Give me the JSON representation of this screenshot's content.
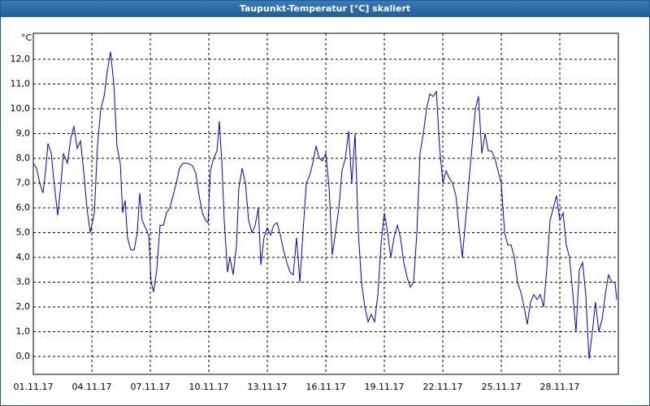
{
  "chart_data": {
    "type": "line",
    "title": "Taupunkt-Temperatur [°C] skaliert",
    "y_unit": "°C",
    "x": [
      0,
      0.17,
      0.33,
      0.5,
      0.63,
      0.75,
      0.92,
      1.04,
      1.25,
      1.42,
      1.54,
      1.75,
      1.92,
      2.08,
      2.25,
      2.42,
      2.58,
      2.75,
      2.92,
      3.13,
      3.29,
      3.46,
      3.63,
      3.79,
      3.96,
      4.13,
      4.29,
      4.46,
      4.58,
      4.71,
      4.83,
      5,
      5.17,
      5.33,
      5.46,
      5.58,
      5.75,
      5.92,
      6.04,
      6.17,
      6.33,
      6.5,
      6.67,
      6.83,
      7,
      7.17,
      7.33,
      7.5,
      7.67,
      7.92,
      8.17,
      8.33,
      8.5,
      8.67,
      8.83,
      8.96,
      9.08,
      9.25,
      9.42,
      9.54,
      9.67,
      9.79,
      9.96,
      10.08,
      10.25,
      10.42,
      10.54,
      10.71,
      10.88,
      11.04,
      11.21,
      11.38,
      11.54,
      11.67,
      11.83,
      12,
      12.17,
      12.33,
      12.5,
      12.67,
      12.83,
      13,
      13.17,
      13.33,
      13.5,
      13.67,
      13.83,
      14,
      14.17,
      14.33,
      14.5,
      14.67,
      14.83,
      15,
      15.17,
      15.33,
      15.5,
      15.67,
      15.83,
      16,
      16.17,
      16.33,
      16.5,
      16.67,
      16.83,
      17,
      17.17,
      17.33,
      17.5,
      17.67,
      17.83,
      18,
      18.17,
      18.33,
      18.5,
      18.67,
      18.83,
      19,
      19.17,
      19.33,
      19.5,
      19.67,
      19.83,
      20,
      20.17,
      20.33,
      20.5,
      20.67,
      20.83,
      21,
      21.17,
      21.33,
      21.5,
      21.67,
      21.83,
      22,
      22.17,
      22.33,
      22.5,
      22.67,
      22.83,
      23,
      23.17,
      23.33,
      23.5,
      23.67,
      23.83,
      24,
      24.17,
      24.33,
      24.5,
      24.67,
      24.83,
      25,
      25.17,
      25.33,
      25.5,
      25.67,
      25.83,
      26,
      26.17,
      26.33,
      26.5,
      26.67,
      26.83,
      27,
      27.17,
      27.33,
      27.5,
      27.67,
      27.83,
      28,
      28.17,
      28.33,
      28.5,
      28.67,
      28.83,
      29,
      29.17,
      29.33,
      29.5,
      29.67,
      29.83,
      29.92
    ],
    "series": [
      {
        "color": "#0000c8",
        "values": [
          7.8,
          7.6,
          7.0,
          6.6,
          7.5,
          8.6,
          8.2,
          7.2,
          5.7,
          7.0,
          8.2,
          7.8,
          8.8,
          9.3,
          8.4,
          8.7,
          7.5,
          6.0,
          5.0,
          5.8,
          8.5,
          10.0,
          10.5,
          11.5,
          12.3,
          11.0,
          8.5,
          7.8,
          5.8,
          6.3,
          4.8,
          4.3,
          4.3,
          5.0,
          6.6,
          5.5,
          5.2,
          4.9,
          3.0,
          2.6,
          3.5,
          5.3,
          5.3,
          5.8,
          6.0,
          6.5,
          7.0,
          7.6,
          7.8,
          7.8,
          7.7,
          7.4,
          6.5,
          5.8,
          5.5,
          5.4,
          7.5,
          8.0,
          8.3,
          9.5,
          7.8,
          5.5,
          3.4,
          4.0,
          3.3,
          4.5,
          6.8,
          7.6,
          7.0,
          5.5,
          5.0,
          5.3,
          6.0,
          3.7,
          4.8,
          5.2,
          4.9,
          5.3,
          5.4,
          4.9,
          4.3,
          3.8,
          3.4,
          3.3,
          4.8,
          3.0,
          5.0,
          7.0,
          7.3,
          7.8,
          8.5,
          8.0,
          7.9,
          8.2,
          6.8,
          4.1,
          5.0,
          6.0,
          7.5,
          8.0,
          9.1,
          7.0,
          9.0,
          5.0,
          3.0,
          2.0,
          1.4,
          1.7,
          1.4,
          2.5,
          4.5,
          5.8,
          5.0,
          4.0,
          4.8,
          5.3,
          4.8,
          3.8,
          3.2,
          2.8,
          3.0,
          5.0,
          8.2,
          9.0,
          10.0,
          10.6,
          10.5,
          10.7,
          8.5,
          7.0,
          7.5,
          7.2,
          7.0,
          6.5,
          5.2,
          4.0,
          5.5,
          7.0,
          8.5,
          10.0,
          10.5,
          8.2,
          9.0,
          8.3,
          8.3,
          8.0,
          7.5,
          7.0,
          5.0,
          4.5,
          4.5,
          4.0,
          3.0,
          2.6,
          2.0,
          1.3,
          2.2,
          2.5,
          2.3,
          2.5,
          2.0,
          3.5,
          5.5,
          6.0,
          6.5,
          5.5,
          5.8,
          4.5,
          4.0,
          2.5,
          1.0,
          3.5,
          3.8,
          2.5,
          -0.1,
          1.0,
          2.2,
          1.0,
          1.5,
          2.5,
          3.3,
          3.0,
          3.0,
          2.3
        ]
      }
    ],
    "xlim": [
      0,
      30
    ],
    "xticks": [
      {
        "value": 0,
        "label": "01.11.17"
      },
      {
        "value": 3,
        "label": "04.11.17"
      },
      {
        "value": 6,
        "label": "07.11.17"
      },
      {
        "value": 9,
        "label": "10.11.17"
      },
      {
        "value": 12,
        "label": "13.11.17"
      },
      {
        "value": 15,
        "label": "16.11.17"
      },
      {
        "value": 18,
        "label": "19.11.17"
      },
      {
        "value": 21,
        "label": "22.11.17"
      },
      {
        "value": 24,
        "label": "25.11.17"
      },
      {
        "value": 27,
        "label": "28.11.17"
      }
    ],
    "ylim": [
      -0.72,
      13.05
    ],
    "yticks": [
      {
        "value": 0,
        "label": "0,0"
      },
      {
        "value": 1,
        "label": "1,0"
      },
      {
        "value": 2,
        "label": "2,0"
      },
      {
        "value": 3,
        "label": "3,0"
      },
      {
        "value": 4,
        "label": "4,0"
      },
      {
        "value": 5,
        "label": "5,0"
      },
      {
        "value": 6,
        "label": "6,0"
      },
      {
        "value": 7,
        "label": "7,0"
      },
      {
        "value": 8,
        "label": "8,0"
      },
      {
        "value": 9,
        "label": "9,0"
      },
      {
        "value": 10,
        "label": "10,0"
      },
      {
        "value": 11,
        "label": "11,0"
      },
      {
        "value": 12,
        "label": "12,0"
      }
    ],
    "grid": true
  }
}
